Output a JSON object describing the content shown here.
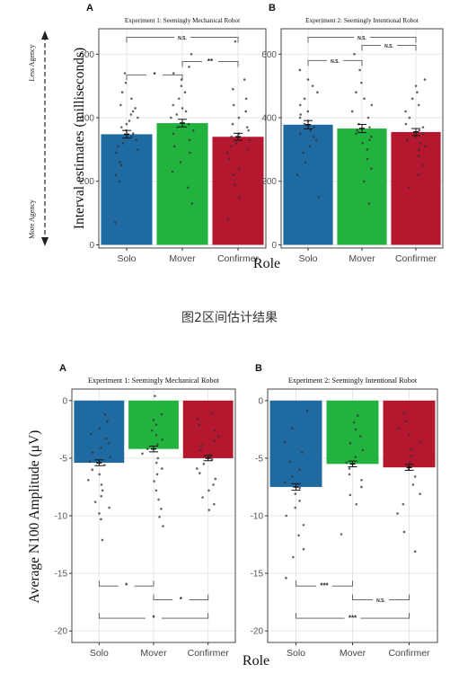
{
  "caption": "图2区间估计结果",
  "colors": {
    "Solo": "#1f6aa0",
    "Mover": "#22b33f",
    "Confirmer": "#b5172f",
    "panel_border": "#444444",
    "grid": "#e6e6e6"
  },
  "chart_data": [
    {
      "type": "bar",
      "panel_letter": "A",
      "title": "Experiment 1: Seemingly Mechanical Robot",
      "categories": [
        "Solo",
        "Mover",
        "Confirmer"
      ],
      "values": [
        348,
        383,
        340
      ],
      "errors": [
        12,
        12,
        11
      ],
      "ylim": [
        -10,
        680
      ],
      "yticks": [
        0,
        200,
        400,
        600
      ],
      "ylabel": "Interval estimates (milliseconds)",
      "xlabel": "Role",
      "side_annotation": {
        "top": "Less Agency",
        "bottom": "More Agency"
      },
      "significance": [
        {
          "from": 0,
          "to": 2,
          "y": 653,
          "label": "N.S."
        },
        {
          "from": 0,
          "to": 1,
          "y": 535,
          "label": "*"
        },
        {
          "from": 1,
          "to": 2,
          "y": 577,
          "label": "**"
        }
      ],
      "points": [
        [
          70,
          200,
          220,
          250,
          260,
          290,
          300,
          310,
          320,
          330,
          340,
          350,
          360,
          370,
          380,
          390,
          400,
          410,
          420,
          430,
          440,
          460,
          480,
          510,
          540
        ],
        [
          130,
          180,
          230,
          260,
          290,
          310,
          330,
          350,
          360,
          370,
          380,
          400,
          410,
          420,
          430,
          440,
          460,
          480,
          500,
          520,
          540,
          560,
          600
        ],
        [
          80,
          150,
          190,
          220,
          240,
          270,
          290,
          300,
          310,
          320,
          330,
          340,
          350,
          360,
          370,
          380,
          400,
          420,
          440,
          460,
          490,
          520,
          640
        ]
      ]
    },
    {
      "type": "bar",
      "panel_letter": "B",
      "title": "Experiment 2: Seemingly Intentional Robot",
      "categories": [
        "Solo",
        "Mover",
        "Confirmer"
      ],
      "values": [
        378,
        366,
        355
      ],
      "errors": [
        13,
        13,
        11
      ],
      "ylim": [
        -10,
        680
      ],
      "yticks": [
        0,
        200,
        400,
        600
      ],
      "ylabel": "",
      "xlabel": "Role",
      "significance": [
        {
          "from": 0,
          "to": 2,
          "y": 653,
          "label": "N.S."
        },
        {
          "from": 0,
          "to": 1,
          "y": 580,
          "label": "N.S."
        },
        {
          "from": 1,
          "to": 2,
          "y": 628,
          "label": "N.S."
        }
      ],
      "points": [
        [
          150,
          220,
          260,
          290,
          310,
          330,
          340,
          350,
          360,
          370,
          380,
          390,
          400,
          410,
          420,
          440,
          460,
          480,
          500,
          520,
          550
        ],
        [
          130,
          200,
          240,
          270,
          300,
          320,
          330,
          340,
          350,
          360,
          370,
          380,
          400,
          420,
          440,
          460,
          480,
          510,
          550,
          600
        ],
        [
          180,
          220,
          250,
          280,
          300,
          310,
          320,
          330,
          340,
          350,
          360,
          370,
          380,
          400,
          420,
          440,
          460,
          480,
          500,
          520
        ]
      ]
    },
    {
      "type": "bar",
      "panel_letter": "A",
      "title": "Experiment 1: Seemingly Mechanical Robot",
      "categories": [
        "Solo",
        "Mover",
        "Confirmer"
      ],
      "values": [
        -5.4,
        -4.2,
        -5.0
      ],
      "errors": [
        0.25,
        0.25,
        0.22
      ],
      "ylim": [
        -21,
        1
      ],
      "yticks": [
        0,
        -5,
        -10,
        -15,
        -20
      ],
      "ylabel": "Average N100 Amplitude (μV)",
      "xlabel": "Role",
      "significance": [
        {
          "from": 0,
          "to": 1,
          "y": -16.1,
          "label": "*"
        },
        {
          "from": 1,
          "to": 2,
          "y": -17.3,
          "label": "*"
        },
        {
          "from": 0,
          "to": 2,
          "y": -18.9,
          "label": "*"
        }
      ],
      "points": [
        [
          -1.2,
          -1.8,
          -2.4,
          -2.9,
          -3.3,
          -3.7,
          -4.1,
          -4.5,
          -4.9,
          -5.3,
          -5.6,
          -6.0,
          -6.4,
          -6.9,
          -7.3,
          -7.8,
          -8.3,
          -8.8,
          -9.3,
          -9.8,
          -10.3,
          -12.1
        ],
        [
          0.4,
          -1.2,
          -1.7,
          -2.1,
          -2.6,
          -3.0,
          -3.4,
          -3.8,
          -4.2,
          -4.6,
          -5.0,
          -5.4,
          -5.9,
          -6.4,
          -7.0,
          -7.8,
          -8.6,
          -9.4,
          -10.1,
          -10.9
        ],
        [
          -1.1,
          -1.6,
          -2.1,
          -2.6,
          -3.1,
          -3.5,
          -3.9,
          -4.3,
          -4.7,
          -5.1,
          -5.5,
          -5.9,
          -6.3,
          -6.8,
          -7.3,
          -7.8,
          -8.4,
          -9.0,
          -9.5
        ]
      ]
    },
    {
      "type": "bar",
      "panel_letter": "B",
      "title": "Experiment 2: Seemingly Intentional Robot",
      "categories": [
        "Solo",
        "Mover",
        "Confirmer"
      ],
      "values": [
        -7.5,
        -5.5,
        -5.8
      ],
      "errors": [
        0.28,
        0.25,
        0.25
      ],
      "ylim": [
        -21,
        1
      ],
      "yticks": [
        0,
        -5,
        -10,
        -15,
        -20
      ],
      "ylabel": "",
      "xlabel": "Role",
      "significance": [
        {
          "from": 0,
          "to": 1,
          "y": -16.1,
          "label": "***"
        },
        {
          "from": 1,
          "to": 2,
          "y": -17.3,
          "label": "N.S."
        },
        {
          "from": 0,
          "to": 2,
          "y": -18.9,
          "label": "***"
        }
      ],
      "points": [
        [
          -0.9,
          -2.4,
          -3.6,
          -4.5,
          -5.3,
          -6.0,
          -6.6,
          -7.1,
          -7.6,
          -8.1,
          -8.7,
          -9.3,
          -10.0,
          -10.8,
          -11.7,
          -12.9,
          -13.6,
          -15.4
        ],
        [
          -1.3,
          -1.9,
          -2.5,
          -3.1,
          -3.7,
          -4.3,
          -4.9,
          -5.4,
          -5.9,
          -6.4,
          -6.9,
          -7.5,
          -8.2,
          -9.0,
          -11.6
        ],
        [
          -1.1,
          -1.8,
          -2.4,
          -3.0,
          -3.6,
          -4.2,
          -4.8,
          -5.4,
          -6.0,
          -6.6,
          -7.3,
          -8.1,
          -9.0,
          -9.8,
          -11.4,
          -13.1
        ]
      ]
    }
  ]
}
